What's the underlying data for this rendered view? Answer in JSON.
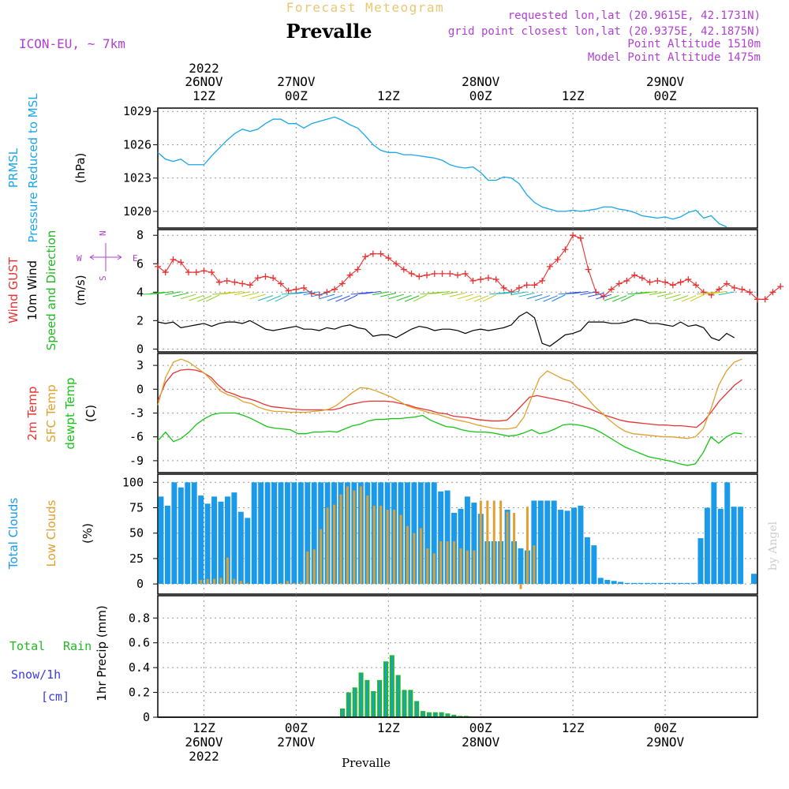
{
  "header": {
    "subtitle": "Forecast Meteogram",
    "title": "Prevalle",
    "model": "ICON-EU, ~ 7km",
    "info": [
      "requested lon,lat (20.9615E, 42.1731N)",
      "grid point closest lon,lat (20.9375E, 42.1875N)",
      "Point Altitude 1510m",
      "Model Point Altitude 1475m"
    ]
  },
  "time_axis": {
    "top": [
      {
        "l1": "2022",
        "l2": "26NOV",
        "l3": "12Z",
        "t": 12
      },
      {
        "l1": "",
        "l2": "27NOV",
        "l3": "00Z",
        "t": 24
      },
      {
        "l1": "",
        "l2": "",
        "l3": "12Z",
        "t": 36
      },
      {
        "l1": "",
        "l2": "28NOV",
        "l3": "00Z",
        "t": 48
      },
      {
        "l1": "",
        "l2": "",
        "l3": "12Z",
        "t": 60
      },
      {
        "l1": "",
        "l2": "29NOV",
        "l3": "00Z",
        "t": 72
      }
    ],
    "bottom": [
      {
        "l1": "12Z",
        "l2": "26NOV",
        "l3": "2022",
        "t": 12
      },
      {
        "l1": "00Z",
        "l2": "27NOV",
        "l3": "",
        "t": 24
      },
      {
        "l1": "12Z",
        "l2": "",
        "l3": "",
        "t": 36
      },
      {
        "l1": "00Z",
        "l2": "28NOV",
        "l3": "",
        "t": 48
      },
      {
        "l1": "12Z",
        "l2": "",
        "l3": "",
        "t": 60
      },
      {
        "l1": "00Z",
        "l2": "29NOV",
        "l3": "",
        "t": 72
      }
    ],
    "footer": "Prevalle",
    "credit": "by Angel"
  },
  "panels": {
    "pressure": {
      "labels": [
        "PRMSL",
        "Pressure Reduced to MSL"
      ],
      "unit": "(hPa)",
      "yticks": [
        "1029",
        "1026",
        "1023",
        "1020"
      ]
    },
    "wind": {
      "labels": [
        "Wind GUST",
        "10m Wind",
        "Speed and Direction"
      ],
      "unit": "(m/s)",
      "yticks": [
        "8",
        "6",
        "4",
        "2",
        "0"
      ],
      "compass_w": "W",
      "compass_e": "E",
      "compass_n": "N",
      "compass_s": "S"
    },
    "temp": {
      "labels": [
        "2m Temp",
        "SFC Temp",
        "dewpt Temp"
      ],
      "unit": "(C)",
      "yticks": [
        "3",
        "0",
        "-3",
        "-6",
        "-9"
      ]
    },
    "clouds": {
      "labels": [
        "Total Clouds",
        "Low Clouds"
      ],
      "unit": "(%)",
      "yticks": [
        "100",
        "75",
        "50",
        "25",
        "0"
      ]
    },
    "precip": {
      "labels": [
        "Total",
        "Rain",
        "Snow/1h",
        "[cm]"
      ],
      "unit": "1hr Precip (mm)",
      "yticks": [
        "0.8",
        "0.6",
        "0.4",
        "0.2",
        "0"
      ]
    }
  },
  "colors": {
    "pressure": "#1aa6e8",
    "gust": "#e83232",
    "wind": "#000000",
    "t2m": "#e83232",
    "sfc": "#e0a030",
    "dew": "#16c416",
    "total_clouds": "#1a9ae8",
    "low_clouds": "#e0a030",
    "rain": "#22b822",
    "snow": "#3a3ae6",
    "purple": "#b040d0",
    "header_orange": "#e8c870"
  },
  "chart_data": {
    "type": "line",
    "x_start": "2022-11-26 06Z",
    "x_step_hours": 1,
    "pressure": {
      "ylim": [
        1018.5,
        1029.3
      ],
      "values": [
        1025.3,
        1024.7,
        1024.5,
        1024.7,
        1024.2,
        1024.2,
        1024.2,
        1025.0,
        1025.7,
        1026.4,
        1027.0,
        1027.4,
        1027.2,
        1027.4,
        1027.9,
        1028.3,
        1028.3,
        1027.9,
        1027.9,
        1027.5,
        1027.9,
        1028.1,
        1028.3,
        1028.5,
        1028.2,
        1027.8,
        1027.5,
        1026.8,
        1026.0,
        1025.5,
        1025.3,
        1025.3,
        1025.1,
        1025.1,
        1025.0,
        1024.9,
        1024.8,
        1024.6,
        1024.2,
        1024.0,
        1023.9,
        1024.0,
        1023.5,
        1022.8,
        1022.8,
        1023.1,
        1023.0,
        1022.5,
        1021.5,
        1020.8,
        1020.4,
        1020.2,
        1020.0,
        1020.0,
        1020.1,
        1020.0,
        1020.1,
        1020.2,
        1020.4,
        1020.4,
        1020.2,
        1020.1,
        1019.9,
        1019.6,
        1019.5,
        1019.4,
        1019.5,
        1019.3,
        1019.5,
        1019.9,
        1020.1,
        1019.4,
        1019.6,
        1018.9,
        1018.6
      ]
    },
    "wind": {
      "ylim": [
        -0.2,
        8.4
      ],
      "gust": [
        5.8,
        5.4,
        6.3,
        6.1,
        5.4,
        5.4,
        5.5,
        5.4,
        4.7,
        4.8,
        4.7,
        4.6,
        4.5,
        5.0,
        5.1,
        5.0,
        4.6,
        4.1,
        4.2,
        4.3,
        3.9,
        3.8,
        4.0,
        4.2,
        4.6,
        5.2,
        5.6,
        6.5,
        6.7,
        6.7,
        6.4,
        6.0,
        5.6,
        5.3,
        5.1,
        5.2,
        5.3,
        5.3,
        5.3,
        5.2,
        5.3,
        4.8,
        4.9,
        5.0,
        4.9,
        4.3,
        4.0,
        4.3,
        4.5,
        4.5,
        4.8,
        5.8,
        6.3,
        7.0,
        8.0,
        7.8,
        5.6,
        4.0,
        3.7,
        4.2,
        4.6,
        4.8,
        5.2,
        5.0,
        4.7,
        4.8,
        4.7,
        4.5,
        4.7,
        4.9,
        4.5,
        4.0,
        3.8,
        4.2,
        4.6,
        4.3,
        4.2,
        4.0,
        3.5,
        3.5,
        4.0,
        4.4
      ],
      "speed": [
        1.9,
        1.8,
        1.9,
        1.5,
        1.6,
        1.7,
        1.8,
        1.6,
        1.8,
        1.9,
        1.9,
        1.8,
        2.0,
        1.7,
        1.4,
        1.3,
        1.4,
        1.5,
        1.6,
        1.4,
        1.4,
        1.3,
        1.5,
        1.4,
        1.6,
        1.7,
        1.5,
        1.4,
        0.9,
        1.0,
        1.0,
        0.8,
        1.1,
        1.4,
        1.6,
        1.5,
        1.3,
        1.4,
        1.4,
        1.3,
        1.1,
        1.3,
        1.4,
        1.3,
        1.4,
        1.5,
        1.7,
        2.3,
        2.6,
        2.2,
        0.4,
        0.2,
        0.6,
        1.0,
        1.1,
        1.3,
        1.9,
        1.9,
        1.9,
        1.8,
        1.8,
        1.9,
        2.1,
        2.0,
        1.8,
        1.8,
        1.7,
        1.6,
        1.9,
        1.6,
        1.7,
        1.5,
        0.8,
        0.6,
        1.1,
        0.8
      ]
    },
    "temp": {
      "ylim": [
        -10.5,
        4.5
      ],
      "t2m": [
        -1.5,
        0.8,
        2.0,
        2.4,
        2.5,
        2.4,
        2.1,
        1.5,
        0.5,
        -0.3,
        -0.6,
        -1.0,
        -1.2,
        -1.5,
        -1.9,
        -2.2,
        -2.3,
        -2.4,
        -2.5,
        -2.6,
        -2.6,
        -2.6,
        -2.6,
        -2.6,
        -2.4,
        -2.0,
        -1.8,
        -1.6,
        -1.5,
        -1.5,
        -1.5,
        -1.6,
        -1.8,
        -2.0,
        -2.3,
        -2.5,
        -2.7,
        -3.0,
        -3.1,
        -3.4,
        -3.5,
        -3.6,
        -3.8,
        -3.9,
        -4.0,
        -4.0,
        -3.9,
        -3.0,
        -2.0,
        -1.0,
        -0.8,
        -1.0,
        -1.2,
        -1.4,
        -1.6,
        -1.9,
        -2.2,
        -2.5,
        -2.9,
        -3.3,
        -3.6,
        -3.9,
        -4.1,
        -4.2,
        -4.3,
        -4.4,
        -4.5,
        -4.5,
        -4.6,
        -4.6,
        -4.7,
        -4.8,
        -4.0,
        -2.8,
        -1.5,
        -0.5,
        0.5,
        1.2
      ],
      "sfc": [
        -2.0,
        1.5,
        3.4,
        3.8,
        3.4,
        2.7,
        2.0,
        1.0,
        -0.2,
        -0.7,
        -1.0,
        -1.6,
        -1.8,
        -2.3,
        -2.6,
        -2.8,
        -2.8,
        -2.9,
        -2.9,
        -2.9,
        -2.8,
        -2.7,
        -2.5,
        -2.0,
        -1.2,
        -0.4,
        0.2,
        0.1,
        -0.2,
        -0.6,
        -1.0,
        -1.5,
        -2.1,
        -2.4,
        -2.7,
        -3.0,
        -3.2,
        -3.5,
        -3.8,
        -4.0,
        -4.2,
        -4.5,
        -4.7,
        -4.9,
        -5.0,
        -5.0,
        -4.8,
        -3.5,
        -1.0,
        1.4,
        2.3,
        1.8,
        1.3,
        1.0,
        0.0,
        -1.0,
        -2.1,
        -3.0,
        -3.9,
        -4.7,
        -5.3,
        -5.6,
        -5.7,
        -5.8,
        -5.9,
        -6.0,
        -6.0,
        -6.1,
        -6.2,
        -6.0,
        -5.0,
        -2.5,
        0.5,
        2.3,
        3.4,
        3.8
      ],
      "dew": [
        -6.5,
        -5.4,
        -6.6,
        -6.2,
        -5.4,
        -4.4,
        -3.7,
        -3.2,
        -3.0,
        -3.0,
        -3.0,
        -3.3,
        -3.7,
        -4.2,
        -4.7,
        -4.9,
        -5.0,
        -5.1,
        -5.6,
        -5.6,
        -5.4,
        -5.4,
        -5.3,
        -5.4,
        -5.0,
        -4.6,
        -4.4,
        -4.0,
        -3.8,
        -3.8,
        -3.7,
        -3.7,
        -3.6,
        -3.5,
        -3.3,
        -3.9,
        -4.3,
        -4.7,
        -4.8,
        -5.1,
        -5.3,
        -5.4,
        -5.4,
        -5.5,
        -5.7,
        -5.9,
        -5.8,
        -5.5,
        -5.1,
        -5.6,
        -5.4,
        -5.0,
        -4.5,
        -4.4,
        -4.5,
        -4.7,
        -5.0,
        -5.5,
        -6.1,
        -6.7,
        -7.3,
        -7.7,
        -8.1,
        -8.5,
        -8.7,
        -8.9,
        -9.1,
        -9.4,
        -9.6,
        -9.4,
        -8.0,
        -6.0,
        -6.8,
        -6.0,
        -5.5,
        -5.6
      ]
    },
    "clouds": {
      "ylim": [
        -10,
        108
      ],
      "total": [
        86,
        77,
        100,
        95,
        100,
        100,
        87,
        79,
        86,
        81,
        86,
        90,
        71,
        65,
        100,
        100,
        100,
        100,
        100,
        100,
        100,
        100,
        100,
        100,
        100,
        100,
        100,
        100,
        100,
        100,
        100,
        100,
        100,
        100,
        100,
        100,
        100,
        100,
        100,
        100,
        100,
        100,
        91,
        92,
        70,
        74,
        86,
        80,
        69,
        42,
        42,
        42,
        73,
        42,
        35,
        33,
        82,
        82,
        82,
        82,
        73,
        72,
        75,
        77,
        46,
        38,
        6,
        4,
        3,
        2,
        1,
        1,
        1,
        1,
        1,
        1,
        1,
        1,
        1,
        1,
        1,
        45,
        75,
        100,
        74,
        100,
        76,
        76,
        0,
        10
      ],
      "low": [
        0,
        0,
        0,
        0,
        0,
        0,
        4,
        5,
        5,
        6,
        26,
        5,
        3,
        1,
        0,
        0,
        0,
        0,
        1,
        3,
        1,
        2,
        32,
        34,
        54,
        75,
        78,
        88,
        96,
        92,
        96,
        87,
        77,
        77,
        73,
        73,
        68,
        57,
        50,
        55,
        35,
        30,
        42,
        42,
        42,
        35,
        33,
        33,
        82,
        82,
        82,
        82,
        71,
        70,
        -5,
        76,
        38,
        0,
        0,
        0,
        0,
        0,
        0,
        0,
        0,
        0,
        0,
        0,
        0,
        0,
        0,
        0,
        0,
        0,
        0,
        0,
        0,
        0,
        0,
        0,
        0,
        0,
        0,
        0,
        0,
        0,
        0,
        0,
        0,
        0
      ]
    },
    "precip": {
      "ylim": [
        0,
        0.98
      ],
      "rain": [
        0,
        0,
        0,
        0,
        0,
        0,
        0,
        0,
        0,
        0,
        0,
        0,
        0,
        0,
        0,
        0,
        0,
        0,
        0,
        0,
        0,
        0,
        0,
        0,
        0.07,
        0.2,
        0.24,
        0.36,
        0.3,
        0.21,
        0.3,
        0.45,
        0.5,
        0.34,
        0.22,
        0.22,
        0.13,
        0.05,
        0.04,
        0.04,
        0.04,
        0.03,
        0.02,
        0.01,
        0.01,
        0,
        0,
        0,
        0,
        0,
        0,
        0,
        0,
        0,
        0,
        0,
        0,
        0,
        0,
        0,
        0,
        0,
        0,
        0,
        0,
        0,
        0,
        0,
        0,
        0,
        0,
        0,
        0,
        0,
        0,
        0,
        0,
        0,
        0,
        0,
        0,
        0,
        0,
        0,
        0,
        0,
        0,
        0,
        0,
        0,
        0,
        0,
        0,
        0,
        0,
        0,
        0,
        0,
        0,
        0,
        0,
        0,
        0,
        0,
        0,
        0,
        0,
        0,
        0,
        0,
        0,
        0,
        0,
        0,
        0,
        0,
        0,
        0,
        0,
        0,
        0,
        0,
        0,
        0,
        0,
        0,
        0,
        0,
        0,
        0,
        0,
        0,
        0,
        0,
        0,
        0,
        0,
        0,
        0,
        0,
        0,
        0,
        0,
        0,
        0,
        0,
        0,
        0,
        0,
        0,
        0
      ]
    },
    "note_precip_total_overlays_rain": true
  }
}
